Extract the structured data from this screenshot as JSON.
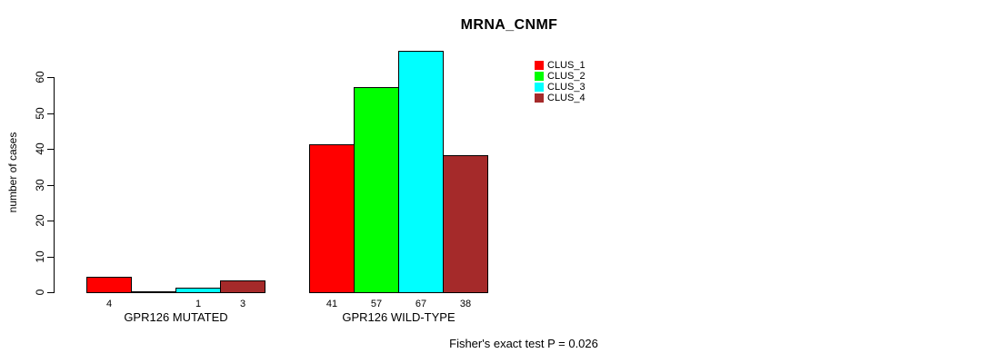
{
  "chart_data": {
    "type": "bar",
    "title": "MRNA_CNMF",
    "ylabel": "number of cases",
    "xlabel": "",
    "ylim": [
      0,
      60
    ],
    "yticks": [
      0,
      10,
      20,
      30,
      40,
      50,
      60
    ],
    "grid": false,
    "legend_position": "top-right",
    "categories": [
      "GPR126 MUTATED",
      "GPR126 WILD-TYPE"
    ],
    "series": [
      {
        "name": "CLUS_1",
        "color": "#FF0000",
        "values": [
          4,
          41
        ]
      },
      {
        "name": "CLUS_2",
        "color": "#00FF00",
        "values": [
          0,
          57
        ]
      },
      {
        "name": "CLUS_3",
        "color": "#00FFFF",
        "values": [
          1,
          67
        ]
      },
      {
        "name": "CLUS_4",
        "color": "#A52A2A",
        "values": [
          3,
          38
        ]
      }
    ],
    "bar_value_labels": [
      [
        "4",
        "",
        "1",
        "3"
      ],
      [
        "41",
        "57",
        "67",
        "38"
      ]
    ],
    "annotation": "Fisher's exact test P = 0.026"
  }
}
